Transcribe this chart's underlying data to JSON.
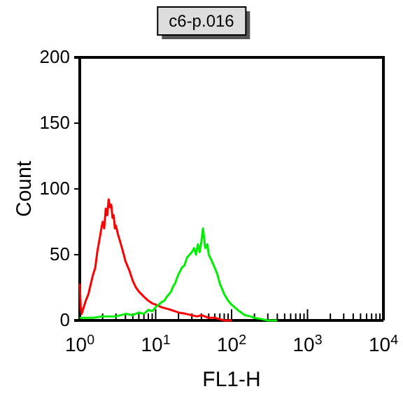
{
  "chart_data": {
    "type": "line",
    "title": "c6-p.016",
    "xlabel": "FL1-H",
    "ylabel": "Count",
    "log": "x",
    "xlim": [
      1,
      10000
    ],
    "ylim": [
      0,
      200
    ],
    "xticks": [
      {
        "value": 1,
        "label": "10$^{0}$"
      },
      {
        "value": 2,
        "label": null
      },
      {
        "value": 3,
        "label": null
      },
      {
        "value": 4,
        "label": null
      },
      {
        "value": 5,
        "label": null
      },
      {
        "value": 6,
        "label": null
      },
      {
        "value": 7,
        "label": null
      },
      {
        "value": 8,
        "label": null
      },
      {
        "value": 9,
        "label": null
      },
      {
        "value": 10,
        "label": "10$^{1}$"
      },
      {
        "value": 20,
        "label": null
      },
      {
        "value": 30,
        "label": null
      },
      {
        "value": 40,
        "label": null
      },
      {
        "value": 50,
        "label": null
      },
      {
        "value": 60,
        "label": null
      },
      {
        "value": 70,
        "label": null
      },
      {
        "value": 80,
        "label": null
      },
      {
        "value": 90,
        "label": null
      },
      {
        "value": 100,
        "label": "10$^{2}$"
      },
      {
        "value": 200,
        "label": null
      },
      {
        "value": 300,
        "label": null
      },
      {
        "value": 400,
        "label": null
      },
      {
        "value": 500,
        "label": null
      },
      {
        "value": 600,
        "label": null
      },
      {
        "value": 700,
        "label": null
      },
      {
        "value": 800,
        "label": null
      },
      {
        "value": 900,
        "label": null
      },
      {
        "value": 1000,
        "label": "10$^{3}$"
      },
      {
        "value": 2000,
        "label": null
      },
      {
        "value": 3000,
        "label": null
      },
      {
        "value": 4000,
        "label": null
      },
      {
        "value": 5000,
        "label": null
      },
      {
        "value": 6000,
        "label": null
      },
      {
        "value": 7000,
        "label": null
      },
      {
        "value": 8000,
        "label": null
      },
      {
        "value": 9000,
        "label": null
      },
      {
        "value": 10000,
        "label": "10$^{4}$"
      }
    ],
    "yticks": [
      0,
      50,
      100,
      150,
      200
    ],
    "grid": false,
    "marker": "none",
    "line_style": "solid",
    "series": [
      {
        "color": "#ff0000",
        "x": [
          1,
          1.03,
          1.06,
          1.1,
          1.2,
          1.3,
          1.4,
          1.5,
          1.6,
          1.7,
          1.8,
          1.9,
          2,
          2.1,
          2.2,
          2.3,
          2.4,
          2.5,
          2.6,
          2.7,
          2.8,
          2.9,
          3,
          3.2,
          3.4,
          3.6,
          3.8,
          4,
          4.5,
          5,
          5.5,
          6,
          7,
          8,
          9,
          10,
          12,
          14,
          16,
          18,
          20,
          25,
          30,
          35,
          40,
          50,
          60,
          70,
          80,
          100
        ],
        "values": [
          28,
          10,
          5,
          8,
          15,
          20,
          28,
          35,
          40,
          52,
          60,
          68,
          75,
          70,
          85,
          80,
          92,
          86,
          88,
          78,
          80,
          70,
          72,
          65,
          60,
          55,
          50,
          45,
          38,
          30,
          25,
          22,
          18,
          15,
          13,
          12,
          10,
          9,
          8,
          7,
          6,
          5,
          4,
          3,
          4,
          2,
          2,
          1,
          0,
          0
        ]
      },
      {
        "color": "#00ee00",
        "x": [
          1,
          1.5,
          2,
          3,
          4,
          5,
          6,
          7,
          8,
          9,
          10,
          11,
          12,
          13,
          14,
          15,
          16,
          17,
          18,
          19,
          20,
          22,
          24,
          26,
          28,
          30,
          32,
          34,
          36,
          38,
          40,
          42,
          45,
          48,
          50,
          55,
          60,
          65,
          70,
          80,
          90,
          100,
          120,
          150,
          180,
          200,
          250,
          300,
          400
        ],
        "values": [
          2,
          2,
          3,
          3,
          5,
          4,
          6,
          5,
          8,
          7,
          10,
          12,
          14,
          15,
          18,
          20,
          22,
          26,
          28,
          32,
          35,
          40,
          42,
          48,
          50,
          52,
          55,
          50,
          58,
          52,
          60,
          70,
          55,
          58,
          50,
          45,
          40,
          35,
          28,
          20,
          15,
          12,
          8,
          4,
          3,
          2,
          1,
          0,
          0
        ]
      }
    ]
  }
}
